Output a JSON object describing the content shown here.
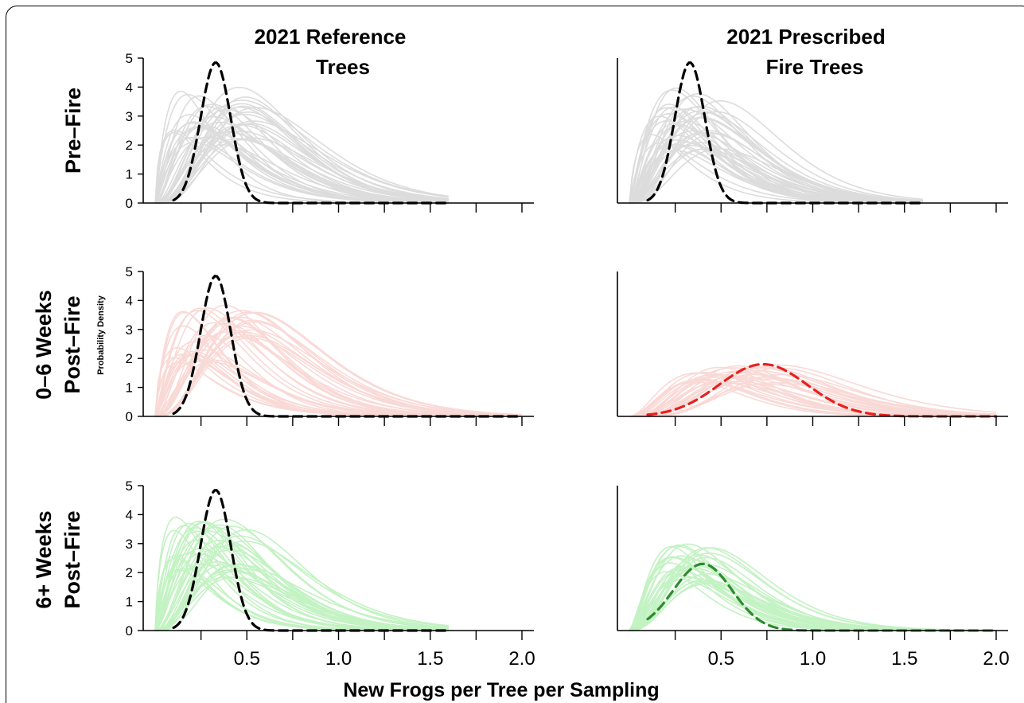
{
  "chart_data": {
    "type": "line",
    "xlabel": "New Frogs per Tree per Sampling",
    "ylabel": "Probability Density",
    "xlim": [
      0,
      2.0
    ],
    "ylim": [
      0,
      5
    ],
    "x_ticks": [
      0.5,
      1.0,
      1.5,
      2.0
    ],
    "x_tick_labels": [
      "0.5",
      "1.0",
      "1.5",
      "2.0"
    ],
    "y_ticks": [
      0,
      1,
      2,
      3,
      4,
      5
    ],
    "y_tick_labels": [
      "0",
      "1",
      "2",
      "3",
      "4",
      "5"
    ],
    "columns": [
      {
        "title_line1": "2021 Reference",
        "title_line2": "Trees"
      },
      {
        "title_line1": "2021 Prescribed",
        "title_line2": "Fire Trees"
      }
    ],
    "rows": [
      {
        "label_line1": "Pre–Fire",
        "label_line2": ""
      },
      {
        "label_line1": "0–6 Weeks",
        "label_line2": "Post–Fire"
      },
      {
        "label_line1": "6+ Weeks",
        "label_line2": "Post–Fire"
      }
    ],
    "colors": {
      "pre_fire_samples": "#dcdcdc",
      "early_post_fire_samples": "#f9d9d6",
      "late_post_fire_samples": "#c3f2c3",
      "reference_mean": "#000000",
      "early_fire_mean": "#e8201e",
      "late_fire_mean": "#2e8b2e"
    },
    "panels": [
      {
        "row": 0,
        "col": 0,
        "sample_color": "#dcdcdc",
        "n_samples": 40,
        "sample_peak_range": [
          0.1,
          0.55
        ],
        "sample_height_range": [
          1.8,
          4.0
        ],
        "sample_spread_range": [
          0.32,
          0.55
        ],
        "mean": {
          "peak_x": 0.33,
          "peak_y": 4.85,
          "sd": 0.082,
          "color": "#000000"
        },
        "x_max": 1.6
      },
      {
        "row": 0,
        "col": 1,
        "sample_color": "#dcdcdc",
        "n_samples": 40,
        "sample_peak_range": [
          0.12,
          0.5
        ],
        "sample_height_range": [
          1.8,
          4.0
        ],
        "sample_spread_range": [
          0.32,
          0.52
        ],
        "mean": {
          "peak_x": 0.33,
          "peak_y": 4.85,
          "sd": 0.082,
          "color": "#000000"
        },
        "x_max": 1.6
      },
      {
        "row": 1,
        "col": 0,
        "sample_color": "#f9d9d6",
        "n_samples": 40,
        "sample_peak_range": [
          0.1,
          0.55
        ],
        "sample_height_range": [
          1.8,
          4.05
        ],
        "sample_spread_range": [
          0.32,
          0.55
        ],
        "mean": {
          "peak_x": 0.33,
          "peak_y": 4.85,
          "sd": 0.082,
          "color": "#000000"
        },
        "x_max": 2.0
      },
      {
        "row": 1,
        "col": 1,
        "sample_color": "#f9d9d6",
        "n_samples": 30,
        "sample_peak_range": [
          0.35,
          0.85
        ],
        "sample_height_range": [
          1.1,
          1.8
        ],
        "sample_spread_range": [
          0.3,
          0.5
        ],
        "mean": {
          "peak_x": 0.73,
          "peak_y": 1.8,
          "sd": 0.24,
          "color": "#e8201e"
        },
        "x_max": 2.0
      },
      {
        "row": 2,
        "col": 0,
        "sample_color": "#c3f2c3",
        "n_samples": 40,
        "sample_peak_range": [
          0.1,
          0.5
        ],
        "sample_height_range": [
          1.8,
          4.0
        ],
        "sample_spread_range": [
          0.32,
          0.52
        ],
        "mean": {
          "peak_x": 0.33,
          "peak_y": 4.85,
          "sd": 0.082,
          "color": "#000000"
        },
        "x_max": 1.6
      },
      {
        "row": 2,
        "col": 1,
        "sample_color": "#c3f2c3",
        "n_samples": 30,
        "sample_peak_range": [
          0.2,
          0.45
        ],
        "sample_height_range": [
          1.6,
          3.0
        ],
        "sample_spread_range": [
          0.28,
          0.42
        ],
        "mean": {
          "peak_x": 0.4,
          "peak_y": 2.3,
          "sd": 0.16,
          "color": "#2e8b2e"
        },
        "x_max": 2.0
      }
    ]
  }
}
